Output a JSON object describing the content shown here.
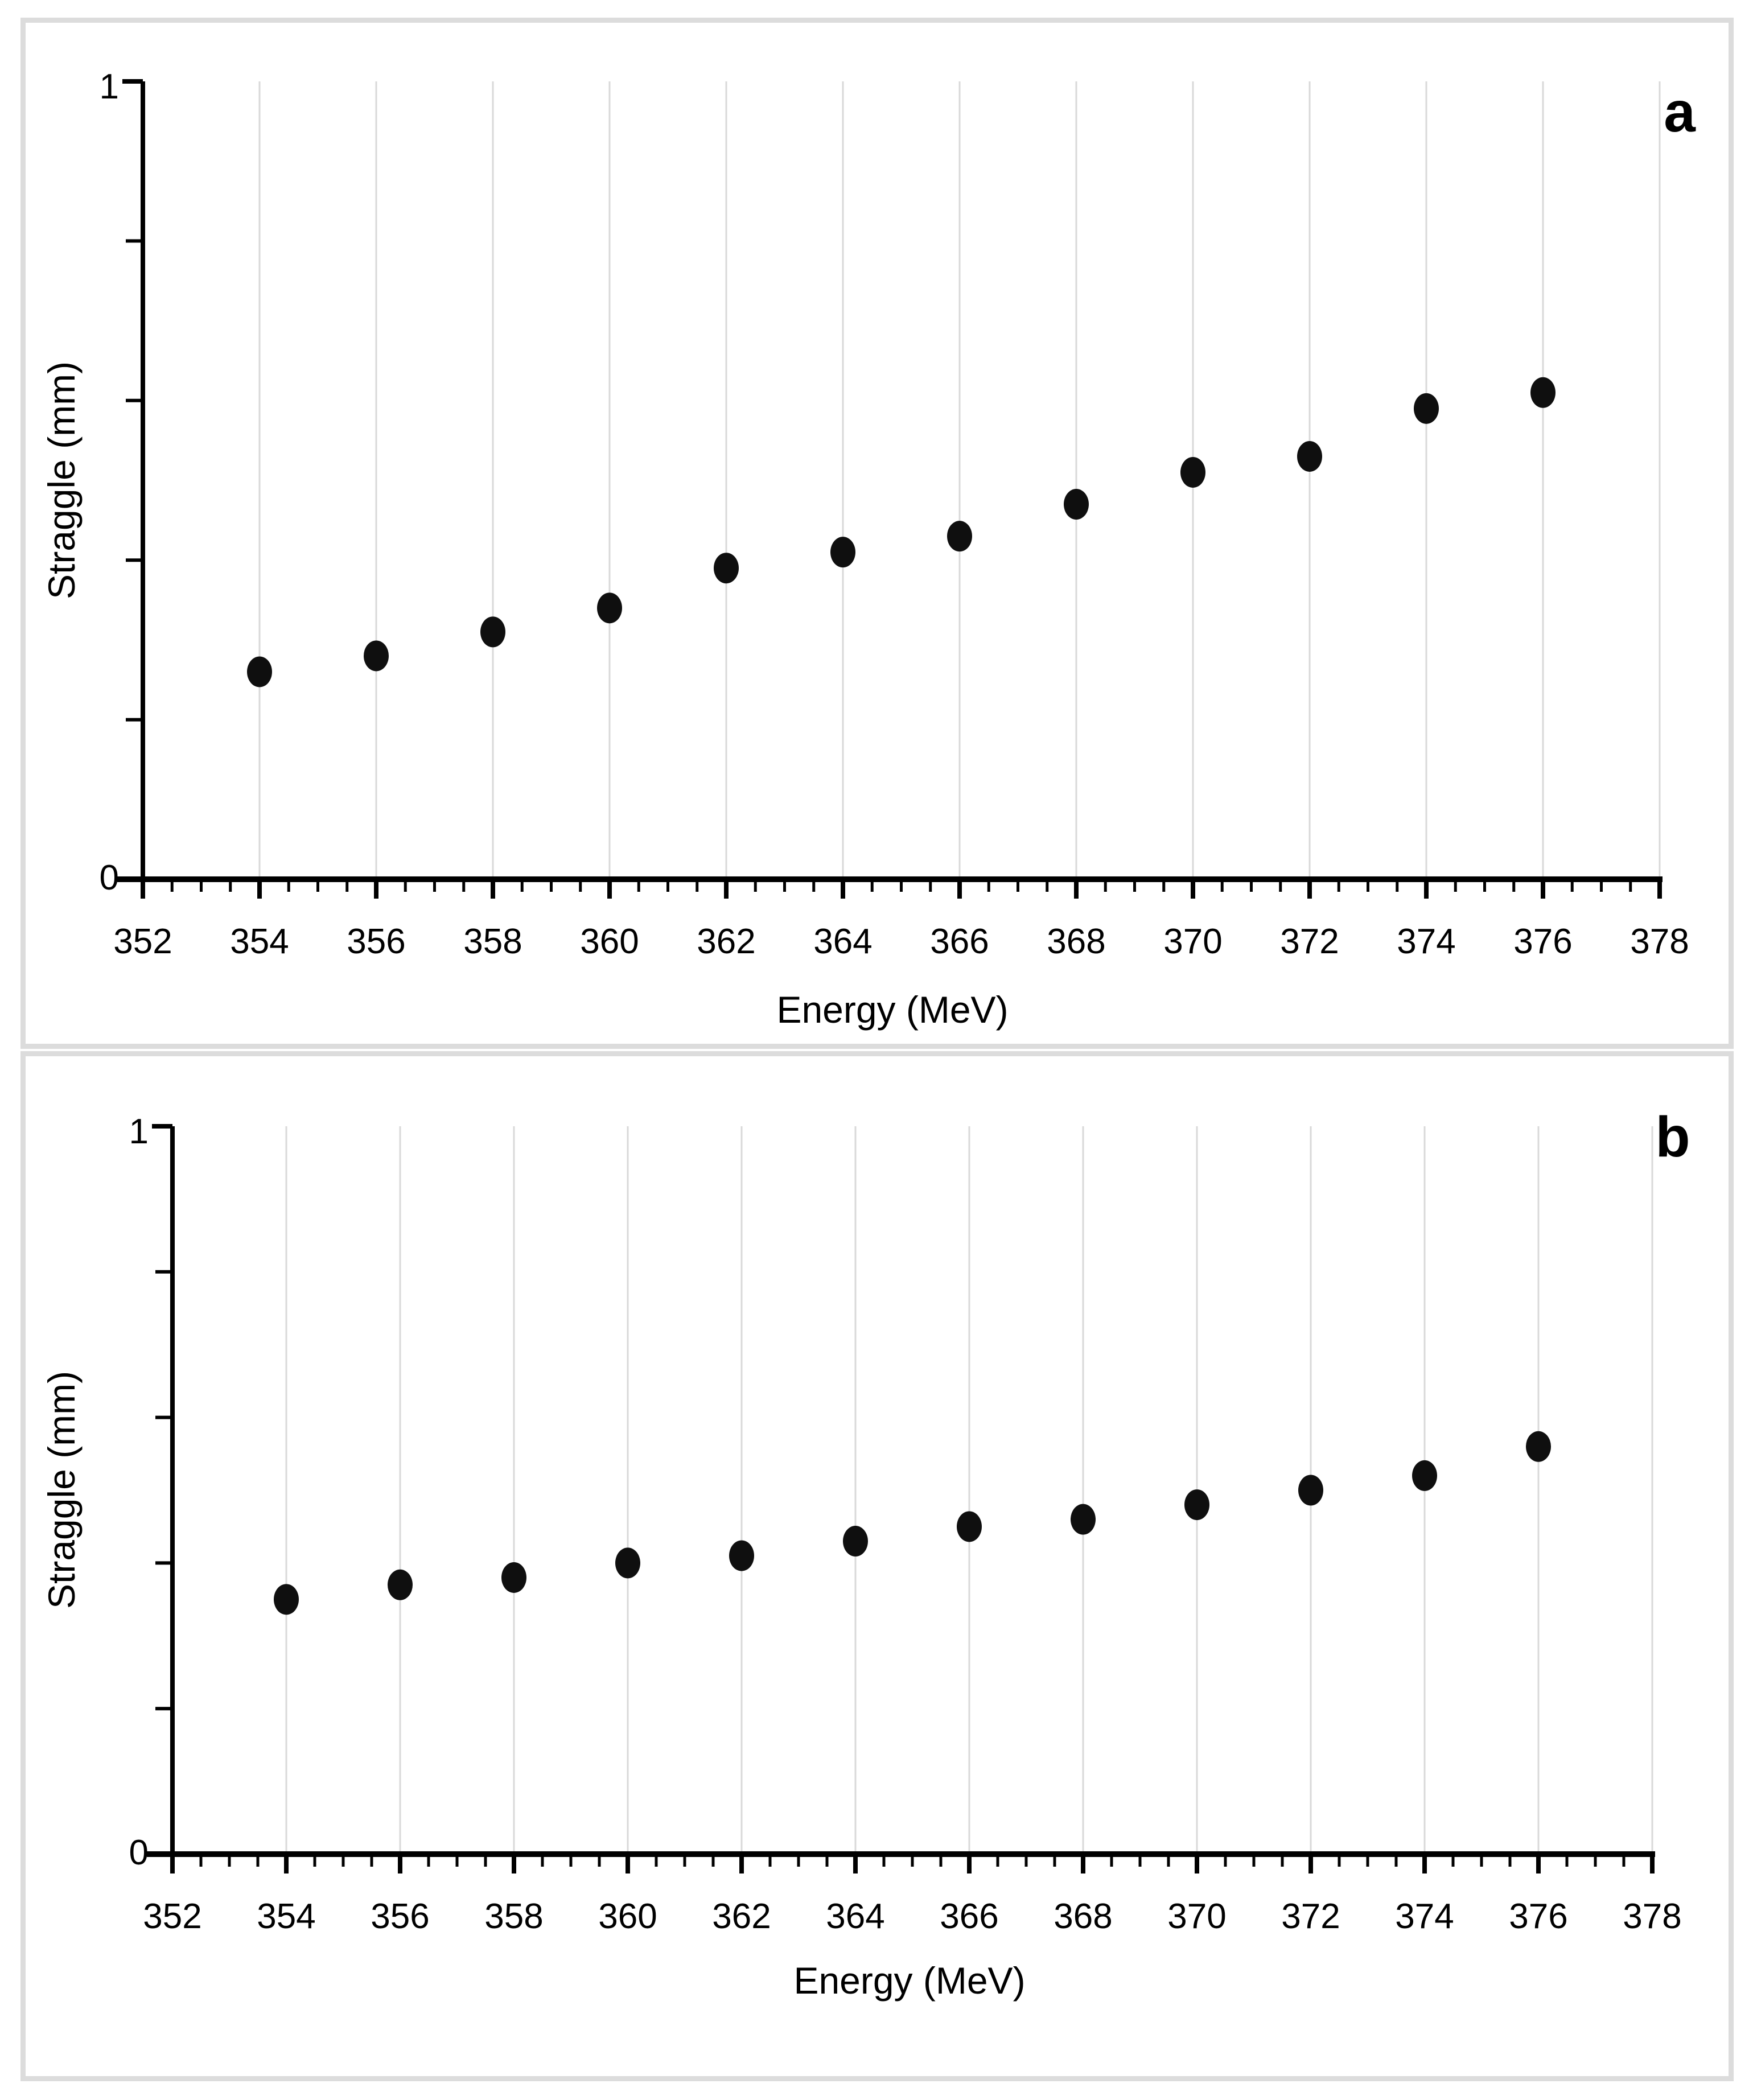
{
  "page": {
    "background": "#ffffff",
    "panel_border_color": "#dcdcdc"
  },
  "chart_data": [
    {
      "type": "scatter",
      "panel_label": "a",
      "title": "",
      "xlabel": "Energy (MeV)",
      "ylabel": "Straggle (mm)",
      "xlim": [
        352,
        378
      ],
      "ylim": [
        0,
        1
      ],
      "x_major_tick_interval": 2,
      "x_minor_tick_interval": 0.5,
      "y_minor_tick_interval": 0.2,
      "x_tick_labels": [
        "352",
        "354",
        "356",
        "358",
        "360",
        "362",
        "364",
        "366",
        "368",
        "370",
        "372",
        "374",
        "376",
        "378"
      ],
      "y_tick_text": {
        "top": "1",
        "bottom": "0"
      },
      "grid": "vertical-major-only",
      "legend": "none",
      "x": [
        354,
        356,
        358,
        360,
        362,
        364,
        366,
        368,
        370,
        372,
        374,
        376
      ],
      "y": [
        0.26,
        0.28,
        0.31,
        0.34,
        0.39,
        0.41,
        0.43,
        0.47,
        0.51,
        0.53,
        0.59,
        0.61
      ],
      "marker_color": "#0f0f0f",
      "gridline_color": "#d9d9d9",
      "axis_color": "#000000"
    },
    {
      "type": "scatter",
      "panel_label": "b",
      "title": "",
      "xlabel": "Energy (MeV)",
      "ylabel": "Straggle (mm)",
      "xlim": [
        352,
        378
      ],
      "ylim": [
        0,
        1
      ],
      "x_major_tick_interval": 2,
      "x_minor_tick_interval": 0.5,
      "y_minor_tick_interval": 0.2,
      "x_tick_labels": [
        "352",
        "354",
        "356",
        "358",
        "360",
        "362",
        "364",
        "366",
        "368",
        "370",
        "372",
        "374",
        "376",
        "378"
      ],
      "y_tick_text": {
        "top": "1",
        "bottom": "0"
      },
      "grid": "vertical-major-only",
      "legend": "none",
      "x": [
        354,
        356,
        358,
        360,
        362,
        364,
        366,
        368,
        370,
        372,
        374,
        376
      ],
      "y": [
        0.35,
        0.37,
        0.38,
        0.4,
        0.41,
        0.43,
        0.45,
        0.46,
        0.48,
        0.5,
        0.52,
        0.56
      ],
      "marker_color": "#0f0f0f",
      "gridline_color": "#d9d9d9",
      "axis_color": "#000000"
    }
  ]
}
